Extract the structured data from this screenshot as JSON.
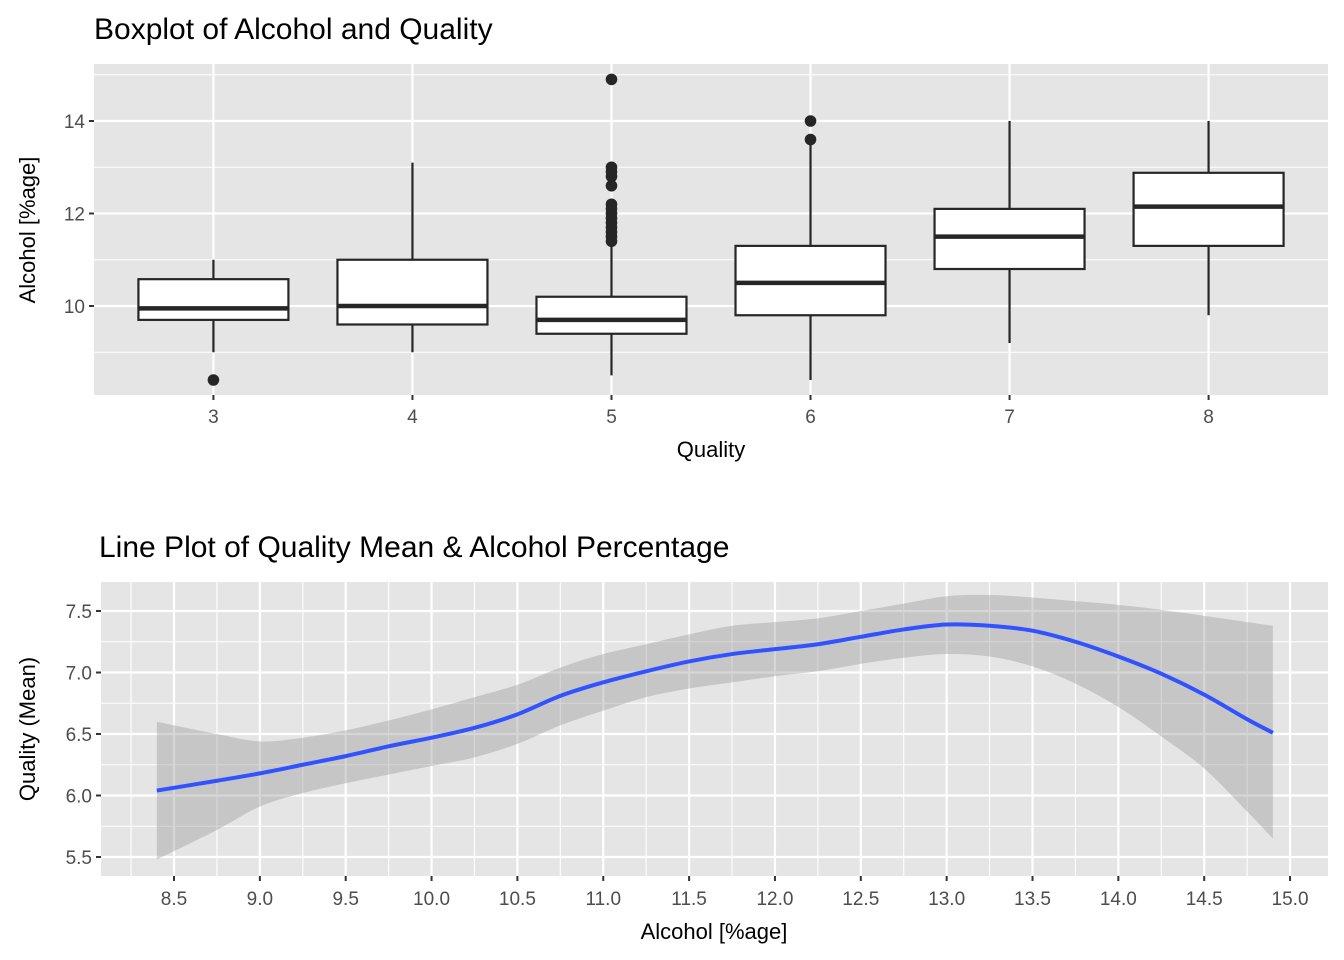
{
  "chart_data": [
    {
      "type": "boxplot",
      "title": "Boxplot of Alcohol and Quality",
      "xlabel": "Quality",
      "ylabel": "Alcohol [%age]",
      "ylim": [
        8.2,
        15.1
      ],
      "yticks": [
        10,
        12,
        14
      ],
      "ytick_labels": [
        "10",
        "12",
        "14"
      ],
      "categories": [
        "3",
        "4",
        "5",
        "6",
        "7",
        "8"
      ],
      "boxes": [
        {
          "q": "3",
          "whisker_low": 9.0,
          "q1": 9.7,
          "median": 9.95,
          "q3": 10.58,
          "whisker_high": 11.0,
          "outliers": [
            8.4
          ]
        },
        {
          "q": "4",
          "whisker_low": 9.0,
          "q1": 9.6,
          "median": 10.0,
          "q3": 11.0,
          "whisker_high": 13.1,
          "outliers": []
        },
        {
          "q": "5",
          "whisker_low": 8.5,
          "q1": 9.4,
          "median": 9.7,
          "q3": 10.2,
          "whisker_high": 11.3,
          "outliers": [
            11.4,
            11.5,
            11.6,
            11.7,
            11.8,
            11.9,
            12.0,
            12.1,
            12.2,
            12.6,
            12.8,
            12.9,
            13.0,
            14.9
          ]
        },
        {
          "q": "6",
          "whisker_low": 8.4,
          "q1": 9.8,
          "median": 10.5,
          "q3": 11.3,
          "whisker_high": 13.6,
          "outliers": [
            13.6,
            14.0
          ]
        },
        {
          "q": "7",
          "whisker_low": 9.2,
          "q1": 10.8,
          "median": 11.5,
          "q3": 12.1,
          "whisker_high": 14.0,
          "outliers": []
        },
        {
          "q": "8",
          "whisker_low": 9.8,
          "q1": 11.3,
          "median": 12.15,
          "q3": 12.88,
          "whisker_high": 14.0,
          "outliers": []
        }
      ],
      "grid": true,
      "colors": {
        "panel": "#e5e5e5",
        "grid": "#ffffff",
        "box_fill": "#ffffff",
        "box_line": "#262626"
      }
    },
    {
      "type": "line",
      "title": "Line Plot of Quality Mean & Alcohol Percentage",
      "xlabel": "Alcohol [%age]",
      "ylabel": "Quality (Mean)",
      "xlim": [
        8.08,
        15.22
      ],
      "ylim": [
        5.36,
        7.78
      ],
      "xticks": [
        8.5,
        9.0,
        9.5,
        10.0,
        10.5,
        11.0,
        11.5,
        12.0,
        12.5,
        13.0,
        13.5,
        14.0,
        14.5,
        15.0
      ],
      "xtick_labels": [
        "8.5",
        "9.0",
        "9.5",
        "10.0",
        "10.5",
        "11.0",
        "11.5",
        "12.0",
        "12.5",
        "13.0",
        "13.5",
        "14.0",
        "14.5",
        "15.0"
      ],
      "yticks": [
        5.5,
        6.0,
        6.5,
        7.0,
        7.5
      ],
      "ytick_labels": [
        "5.5",
        "6.0",
        "6.5",
        "7.0",
        "7.5"
      ],
      "series": [
        {
          "name": "smooth",
          "x": [
            8.4,
            8.75,
            9.0,
            9.25,
            9.5,
            9.75,
            10.0,
            10.25,
            10.5,
            10.75,
            11.0,
            11.25,
            11.5,
            11.75,
            12.0,
            12.25,
            12.5,
            12.75,
            13.0,
            13.25,
            13.5,
            13.75,
            14.0,
            14.25,
            14.5,
            14.75,
            14.9
          ],
          "y": [
            6.04,
            6.12,
            6.18,
            6.25,
            6.32,
            6.4,
            6.47,
            6.55,
            6.66,
            6.81,
            6.92,
            7.01,
            7.09,
            7.15,
            7.19,
            7.23,
            7.29,
            7.35,
            7.39,
            7.38,
            7.34,
            7.25,
            7.13,
            6.99,
            6.82,
            6.62,
            6.51
          ],
          "lower": [
            5.48,
            5.72,
            5.91,
            6.02,
            6.1,
            6.17,
            6.24,
            6.31,
            6.42,
            6.57,
            6.69,
            6.8,
            6.87,
            6.92,
            6.97,
            7.01,
            7.07,
            7.12,
            7.15,
            7.13,
            7.05,
            6.91,
            6.72,
            6.48,
            6.22,
            5.87,
            5.65
          ],
          "upper": [
            6.6,
            6.5,
            6.44,
            6.47,
            6.53,
            6.61,
            6.7,
            6.8,
            6.9,
            7.04,
            7.15,
            7.23,
            7.31,
            7.38,
            7.41,
            7.44,
            7.5,
            7.56,
            7.62,
            7.63,
            7.61,
            7.58,
            7.55,
            7.51,
            7.46,
            7.41,
            7.38
          ]
        }
      ],
      "grid": true,
      "colors": {
        "panel": "#e5e5e5",
        "grid": "#ffffff",
        "line": "#3152ff",
        "ribbon": "#bfbfbf"
      }
    }
  ]
}
